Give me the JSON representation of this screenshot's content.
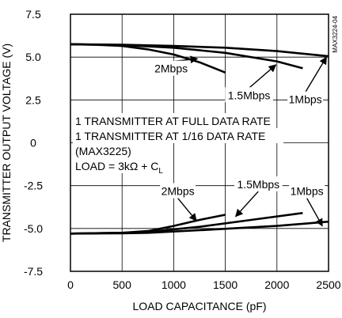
{
  "chart_data": {
    "type": "line",
    "title": "",
    "xlabel": "LOAD CAPACITANCE (pF)",
    "ylabel": "TRANSMITTER OUTPUT VOLTAGE (V)",
    "xlim": [
      0,
      2500
    ],
    "ylim": [
      -7.5,
      7.5
    ],
    "x_ticks": [
      "0",
      "500",
      "1000",
      "1500",
      "2000",
      "2500"
    ],
    "y_ticks": [
      "7.5",
      "5.0",
      "2.5",
      "0",
      "-2.5",
      "-5.0",
      "-7.5"
    ],
    "grid": true,
    "part_number": "MAX3224-04",
    "conditions": [
      "1 TRANSMITTER AT FULL DATA RATE",
      "1 TRANSMITTER AT 1/16 DATA RATE",
      "(MAX3225)",
      "LOAD = 3kΩ + C"
    ],
    "load_subscript": "L",
    "series": [
      {
        "name": "2Mbps",
        "x": [
          0,
          250,
          500,
          750,
          1000,
          1250,
          1500
        ],
        "y": [
          5.75,
          5.72,
          5.65,
          5.45,
          5.15,
          4.7,
          4.1
        ]
      },
      {
        "name": "1.5Mbps",
        "x": [
          0,
          500,
          1000,
          1500,
          2000,
          2250
        ],
        "y": [
          5.75,
          5.7,
          5.55,
          5.25,
          4.75,
          4.35
        ]
      },
      {
        "name": "1Mbps",
        "x": [
          0,
          500,
          1000,
          1500,
          2000,
          2500
        ],
        "y": [
          5.75,
          5.72,
          5.65,
          5.55,
          5.35,
          5.05
        ]
      },
      {
        "name": "2Mbps",
        "x": [
          0,
          500,
          750,
          1000,
          1250,
          1500
        ],
        "y": [
          -5.3,
          -5.25,
          -5.15,
          -4.85,
          -4.5,
          -4.2
        ]
      },
      {
        "name": "1.5Mbps",
        "x": [
          0,
          500,
          750,
          1250,
          1750,
          2250
        ],
        "y": [
          -5.3,
          -5.25,
          -5.2,
          -4.9,
          -4.5,
          -4.1
        ]
      },
      {
        "name": "1Mbps",
        "x": [
          0,
          500,
          750,
          1250,
          2000,
          2500
        ],
        "y": [
          -5.3,
          -5.28,
          -5.25,
          -5.1,
          -4.85,
          -4.6
        ]
      }
    ],
    "labels": [
      {
        "text": "2Mbps",
        "x": 975,
        "y": 4.1,
        "ax": 1230,
        "ay": 4.9
      },
      {
        "text": "1.5Mbps",
        "x": 1730,
        "y": 2.55,
        "ax": 1990,
        "ay": 4.55
      },
      {
        "text": "1Mbps",
        "x": 2275,
        "y": 2.3,
        "ax": 2480,
        "ay": 5.0
      },
      {
        "text": "2Mbps",
        "x": 1040,
        "y": -3.05,
        "ax": 1220,
        "ay": -4.55
      },
      {
        "text": "1.5Mbps",
        "x": 1820,
        "y": -2.65,
        "ax": 1600,
        "ay": -4.3
      },
      {
        "text": "1Mbps",
        "x": 2290,
        "y": -3.05,
        "ax": 2440,
        "ay": -4.85
      }
    ]
  }
}
